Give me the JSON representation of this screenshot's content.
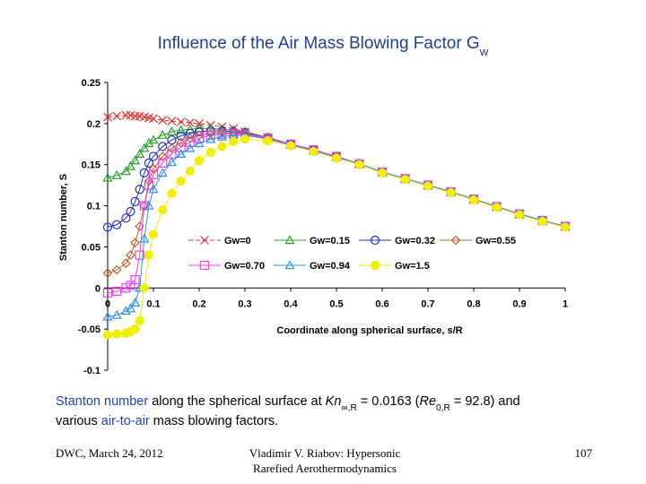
{
  "title": [
    {
      "text": "Influence of the Air Mass Blowing Factor G",
      "style": "plain"
    },
    {
      "text": "w",
      "style": "sub"
    }
  ],
  "chart_data": {
    "type": "line",
    "x_label": "Coordinate along spherical surface, s/R",
    "y_label": "Stanton number, S",
    "x": [
      0,
      0.02,
      0.04,
      0.05,
      0.06,
      0.07,
      0.08,
      0.09,
      0.1,
      0.12,
      0.14,
      0.16,
      0.18,
      0.2,
      0.225,
      0.25,
      0.275,
      0.3,
      0.35,
      0.4,
      0.45,
      0.5,
      0.55,
      0.6,
      0.65,
      0.7,
      0.75,
      0.8,
      0.85,
      0.9,
      0.95,
      1.0
    ],
    "series": [
      {
        "name": "Gw=0",
        "color": "#e03030",
        "marker": "x",
        "dash": true,
        "values": [
          0.208,
          0.209,
          0.21,
          0.21,
          0.209,
          0.209,
          0.208,
          0.207,
          0.206,
          0.204,
          0.203,
          0.202,
          0.201,
          0.2,
          0.198,
          0.196,
          0.194,
          0.19,
          0.183,
          0.175,
          0.168,
          0.16,
          0.151,
          0.141,
          0.133,
          0.125,
          0.117,
          0.108,
          0.099,
          0.09,
          0.082,
          0.075
        ]
      },
      {
        "name": "Gw=0.15",
        "color": "#2ca02c",
        "marker": "triangle",
        "dash": false,
        "values": [
          0.134,
          0.137,
          0.142,
          0.148,
          0.155,
          0.163,
          0.17,
          0.176,
          0.18,
          0.186,
          0.19,
          0.192,
          0.193,
          0.194,
          0.194,
          0.193,
          0.192,
          0.19,
          0.183,
          0.175,
          0.168,
          0.16,
          0.151,
          0.141,
          0.133,
          0.125,
          0.117,
          0.108,
          0.099,
          0.09,
          0.082,
          0.075
        ]
      },
      {
        "name": "Gw=0.32",
        "color": "#2030d0",
        "marker": "circle",
        "dash": false,
        "values": [
          0.074,
          0.077,
          0.085,
          0.093,
          0.105,
          0.12,
          0.14,
          0.152,
          0.16,
          0.172,
          0.18,
          0.185,
          0.188,
          0.19,
          0.191,
          0.191,
          0.19,
          0.189,
          0.183,
          0.175,
          0.168,
          0.16,
          0.151,
          0.141,
          0.133,
          0.125,
          0.117,
          0.108,
          0.099,
          0.09,
          0.082,
          0.075
        ]
      },
      {
        "name": "Gw=0.55",
        "color": "#c0602a",
        "marker": "diamond",
        "dash": false,
        "values": [
          0.018,
          0.022,
          0.03,
          0.04,
          0.055,
          0.075,
          0.1,
          0.13,
          0.145,
          0.16,
          0.17,
          0.177,
          0.182,
          0.186,
          0.188,
          0.189,
          0.189,
          0.188,
          0.183,
          0.175,
          0.168,
          0.16,
          0.151,
          0.141,
          0.133,
          0.125,
          0.117,
          0.108,
          0.099,
          0.09,
          0.082,
          0.075
        ]
      },
      {
        "name": "Gw=0.70",
        "color": "#f040f0",
        "marker": "square",
        "dash": false,
        "values": [
          -0.006,
          -0.004,
          0.0,
          0.003,
          0.01,
          0.04,
          0.1,
          0.125,
          0.138,
          0.152,
          0.163,
          0.171,
          0.177,
          0.182,
          0.186,
          0.187,
          0.188,
          0.187,
          0.182,
          0.175,
          0.168,
          0.16,
          0.151,
          0.141,
          0.133,
          0.125,
          0.117,
          0.108,
          0.099,
          0.09,
          0.082,
          0.075
        ]
      },
      {
        "name": "Gw=0.94",
        "color": "#3090e0",
        "marker": "triangle",
        "dash": false,
        "values": [
          -0.035,
          -0.033,
          -0.028,
          -0.025,
          -0.018,
          0.0,
          0.06,
          0.1,
          0.12,
          0.14,
          0.153,
          0.163,
          0.17,
          0.176,
          0.181,
          0.184,
          0.186,
          0.186,
          0.181,
          0.174,
          0.167,
          0.159,
          0.151,
          0.141,
          0.133,
          0.125,
          0.117,
          0.108,
          0.099,
          0.09,
          0.082,
          0.075
        ]
      },
      {
        "name": "Gw=1.5",
        "color": "#f0f000",
        "marker": "dot",
        "dash": false,
        "values": [
          -0.057,
          -0.056,
          -0.055,
          -0.053,
          -0.05,
          -0.04,
          0.0,
          0.04,
          0.065,
          0.095,
          0.115,
          0.13,
          0.142,
          0.155,
          0.165,
          0.172,
          0.178,
          0.181,
          0.179,
          0.173,
          0.166,
          0.158,
          0.15,
          0.14,
          0.132,
          0.124,
          0.116,
          0.107,
          0.098,
          0.089,
          0.081,
          0.074
        ]
      }
    ],
    "xlim": [
      0,
      1
    ],
    "xticks": [
      0,
      0.1,
      0.2,
      0.3,
      0.4,
      0.5,
      0.6,
      0.7,
      0.8,
      0.9,
      1
    ],
    "ylim": [
      -0.1,
      0.25
    ],
    "yticks": [
      -0.1,
      -0.05,
      0,
      0.05,
      0.1,
      0.15,
      0.2,
      0.25
    ],
    "grid": false,
    "legend": "center"
  },
  "caption": [
    [
      {
        "text": "Stanton number",
        "style": "blue"
      },
      {
        "text": " along the spherical surface at ",
        "style": "plain"
      },
      {
        "text": "Kn",
        "style": "italic"
      },
      {
        "text": "∞,R",
        "style": "sub"
      },
      {
        "text": " = 0.0163 (",
        "style": "plain"
      },
      {
        "text": "Re",
        "style": "italic"
      },
      {
        "text": "0,R",
        "style": "sub"
      },
      {
        "text": " = 92.8) and",
        "style": "plain"
      }
    ],
    [
      {
        "text": "various ",
        "style": "plain"
      },
      {
        "text": "air-to-air",
        "style": "blue"
      },
      {
        "text": " mass blowing factors.",
        "style": "plain"
      }
    ]
  ],
  "footer": {
    "left": "DWC, March 24, 2012",
    "center": [
      "Vladimir V. Riabov: Hypersonic",
      "Rarefied Aerothermodynamics"
    ],
    "right": "107"
  }
}
